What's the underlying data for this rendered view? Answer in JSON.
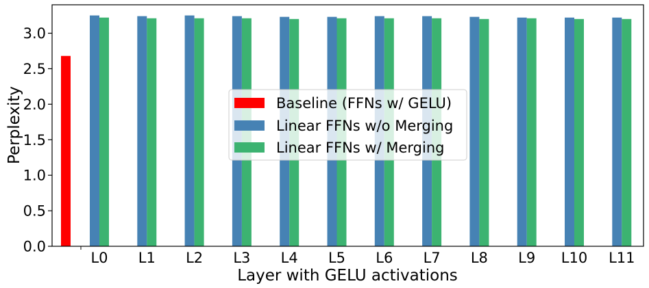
{
  "chart_data": {
    "type": "bar",
    "title": "",
    "xlabel": "Layer with GELU activations",
    "ylabel": "Perplexity",
    "ylim": [
      0,
      3.4
    ],
    "yticks": [
      "0.0",
      "0.5",
      "1.0",
      "1.5",
      "2.0",
      "2.5",
      "3.0"
    ],
    "categories": [
      "L0",
      "L1",
      "L2",
      "L3",
      "L4",
      "L5",
      "L6",
      "L7",
      "L8",
      "L9",
      "L10",
      "L11"
    ],
    "baseline": {
      "name": "Baseline (FFNs w/ GELU)",
      "value": 2.68,
      "color": "#ff0000"
    },
    "series": [
      {
        "name": "Linear FFNs w/o Merging",
        "color": "#4682b4",
        "values": [
          3.25,
          3.24,
          3.25,
          3.24,
          3.23,
          3.23,
          3.24,
          3.24,
          3.23,
          3.22,
          3.22,
          3.22
        ]
      },
      {
        "name": "Linear FFNs w/ Merging",
        "color": "#3cb371",
        "values": [
          3.22,
          3.21,
          3.21,
          3.21,
          3.2,
          3.21,
          3.21,
          3.21,
          3.2,
          3.21,
          3.2,
          3.2
        ]
      }
    ],
    "legend_position": "center",
    "grid": false
  }
}
